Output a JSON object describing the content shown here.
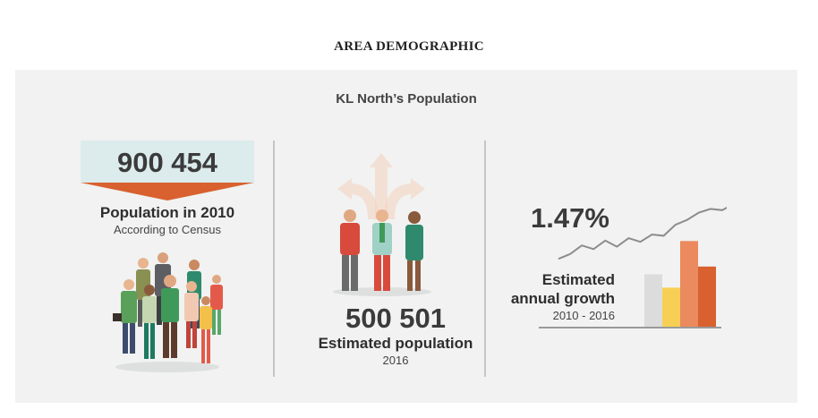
{
  "heading": "AREA DEMOGRAPHIC",
  "subtitle": "KL North’s Population",
  "population_2010": {
    "value": "900 454",
    "label": "Population in 2010",
    "sub": "According to Census",
    "icon": "crowd-illustration",
    "box_color": "#dcebeb",
    "arrow_color": "#d8612f"
  },
  "estimated_population": {
    "value": "500 501",
    "label": "Estimated population",
    "year": "2016",
    "icon": "three-people-arrows-illustration"
  },
  "growth": {
    "value": "1.47%",
    "label_line1": "Estimated",
    "label_line2": "annual growth",
    "years": "2010 - 2016",
    "icon": "growth-chart-illustration",
    "bar_levels": [
      0.48,
      0.36,
      0.78,
      0.55
    ],
    "bar_colors": [
      "#dcdcdc",
      "#f8cf55",
      "#eb8a5e",
      "#d8612f"
    ],
    "line_levels": [
      0.1,
      0.18,
      0.32,
      0.26,
      0.4,
      0.3,
      0.44,
      0.38,
      0.5,
      0.48,
      0.66,
      0.74,
      0.86,
      0.92,
      0.9,
      1.0
    ]
  }
}
